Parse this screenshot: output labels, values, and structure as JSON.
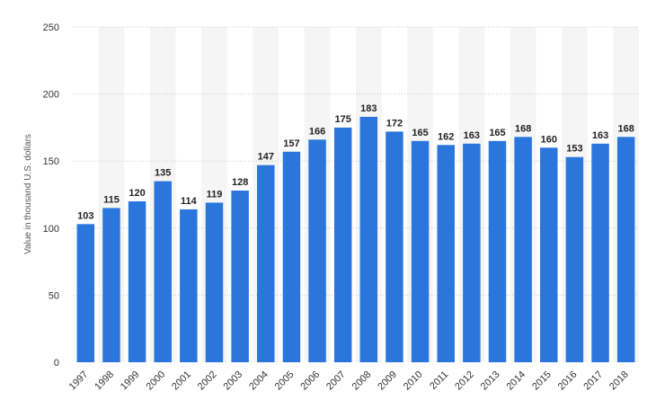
{
  "chart_data": {
    "type": "bar",
    "title": "",
    "xlabel": "",
    "ylabel": "Value in thousand U.S. dollars",
    "categories": [
      "1997",
      "1998",
      "1999",
      "2000",
      "2001",
      "2002",
      "2003",
      "2004",
      "2005",
      "2006",
      "2007",
      "2008",
      "2009",
      "2010",
      "2011",
      "2012",
      "2013",
      "2014",
      "2015",
      "2016",
      "2017",
      "2018"
    ],
    "values": [
      103,
      115,
      120,
      135,
      114,
      119,
      128,
      147,
      157,
      166,
      175,
      183,
      172,
      165,
      162,
      163,
      165,
      168,
      160,
      153,
      163,
      168
    ],
    "ylim": [
      0,
      250
    ],
    "yticks": [
      0,
      50,
      100,
      150,
      200,
      250
    ],
    "grid": true,
    "data_labels": true,
    "legend": "none"
  },
  "colors": {
    "bar": "#2a76dd",
    "grid": "#c8c8c8",
    "band": "#f5f5f5"
  }
}
